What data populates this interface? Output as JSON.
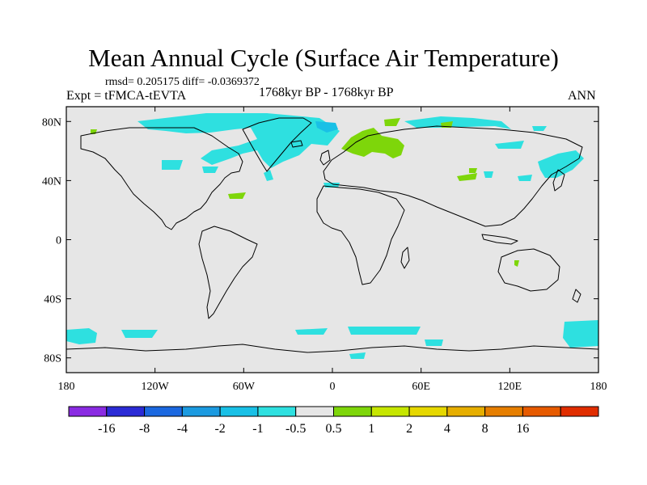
{
  "title": "Mean Annual Cycle (Surface Air Temperature)",
  "stats_line": "rmsd= 0.205175 diff= -0.0369372",
  "experiment_label": "Expt = tFMCA-tEVTA",
  "period_label": "1768kyr BP - 1768kyr BP",
  "season_label": "ANN",
  "map": {
    "projection": "cylindrical equidistant",
    "lon_range": [
      -180,
      180
    ],
    "lat_range": [
      -90,
      90
    ],
    "background_color": "#e6e6e6",
    "lat_ticks": [
      {
        "value": 80,
        "label": "80N"
      },
      {
        "value": 40,
        "label": "40N"
      },
      {
        "value": 0,
        "label": "0"
      },
      {
        "value": -40,
        "label": "40S"
      },
      {
        "value": -80,
        "label": "80S"
      }
    ],
    "lon_ticks": [
      {
        "value": -180,
        "label": "180"
      },
      {
        "value": -120,
        "label": "120W"
      },
      {
        "value": -60,
        "label": "60W"
      },
      {
        "value": 0,
        "label": "0"
      },
      {
        "value": 60,
        "label": "60E"
      },
      {
        "value": 120,
        "label": "120E"
      },
      {
        "value": 180,
        "label": "180"
      }
    ]
  },
  "colorbar": {
    "colors": [
      "#8a2be2",
      "#2b2bd6",
      "#1b68e0",
      "#1b9ae0",
      "#19c0e6",
      "#2ee0e0",
      "#e6e6e6",
      "#7ed60a",
      "#c6e600",
      "#e6d800",
      "#e6ae00",
      "#e67e00",
      "#e65a00",
      "#e02d00"
    ],
    "labels": [
      "-16",
      "-8",
      "-4",
      "-2",
      "-1",
      "-0.5",
      "0.5",
      "1",
      "2",
      "4",
      "8",
      "16"
    ]
  }
}
